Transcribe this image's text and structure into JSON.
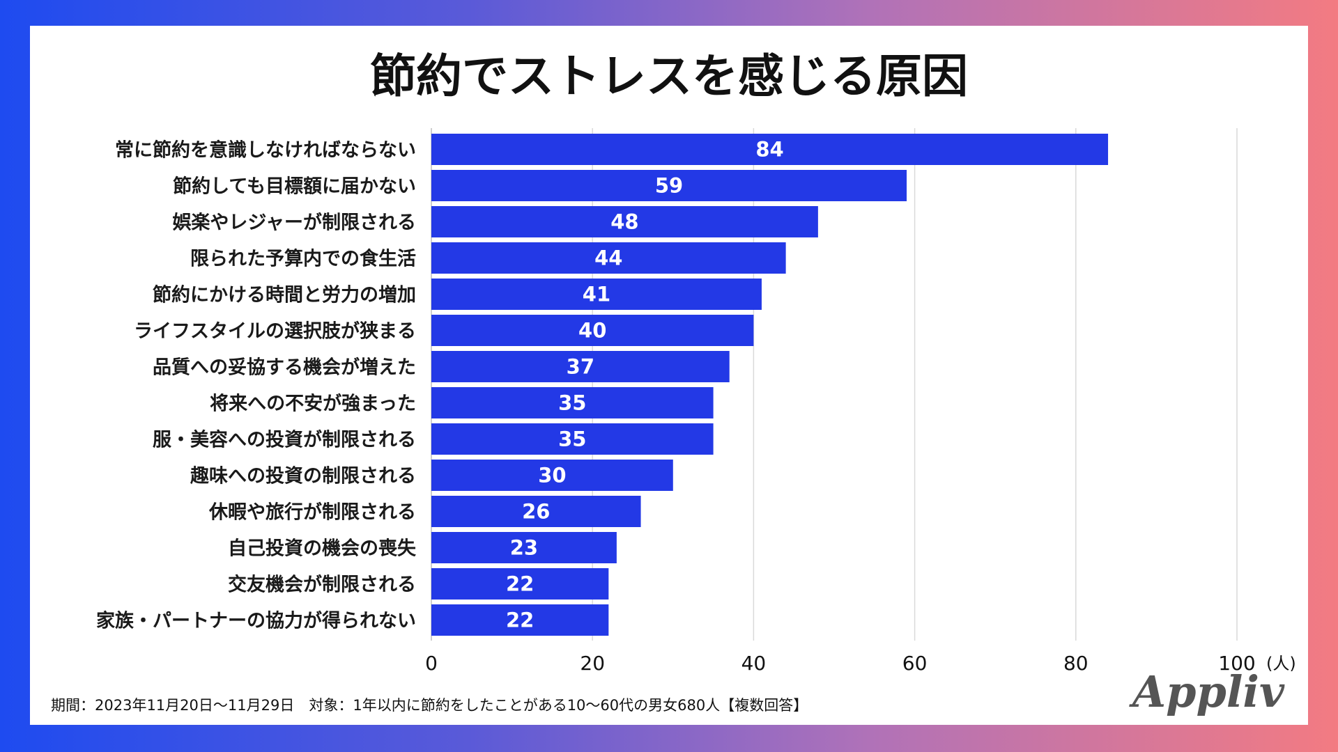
{
  "chart_data": {
    "type": "bar",
    "orientation": "horizontal",
    "title": "節約でストレスを感じる原因",
    "categories": [
      "常に節約を意識しなければならない",
      "節約しても目標額に届かない",
      "娯楽やレジャーが制限される",
      "限られた予算内での食生活",
      "節約にかける時間と労力の増加",
      "ライフスタイルの選択肢が狭まる",
      "品質への妥協する機会が増えた",
      "将来への不安が強まった",
      "服・美容への投資が制限される",
      "趣味への投資の制限される",
      "休暇や旅行が制限される",
      "自己投資の機会の喪失",
      "交友機会が制限される",
      "家族・パートナーの協力が得られない"
    ],
    "values": [
      84,
      59,
      48,
      44,
      41,
      40,
      37,
      35,
      35,
      30,
      26,
      23,
      22,
      22
    ],
    "xlim": [
      0,
      100
    ],
    "xticks": [
      0,
      20,
      40,
      60,
      80,
      100
    ],
    "xtick_labels": [
      "0",
      "20",
      "40",
      "60",
      "80",
      "100"
    ],
    "unit": "(人)",
    "grid": true,
    "bar_color": "#2339e6"
  },
  "footnote": "期間：2023年11月20日〜11月29日　対象：1年以内に節約をしたことがある10〜60代の男女680人【複数回答】",
  "brand": "Appliv"
}
